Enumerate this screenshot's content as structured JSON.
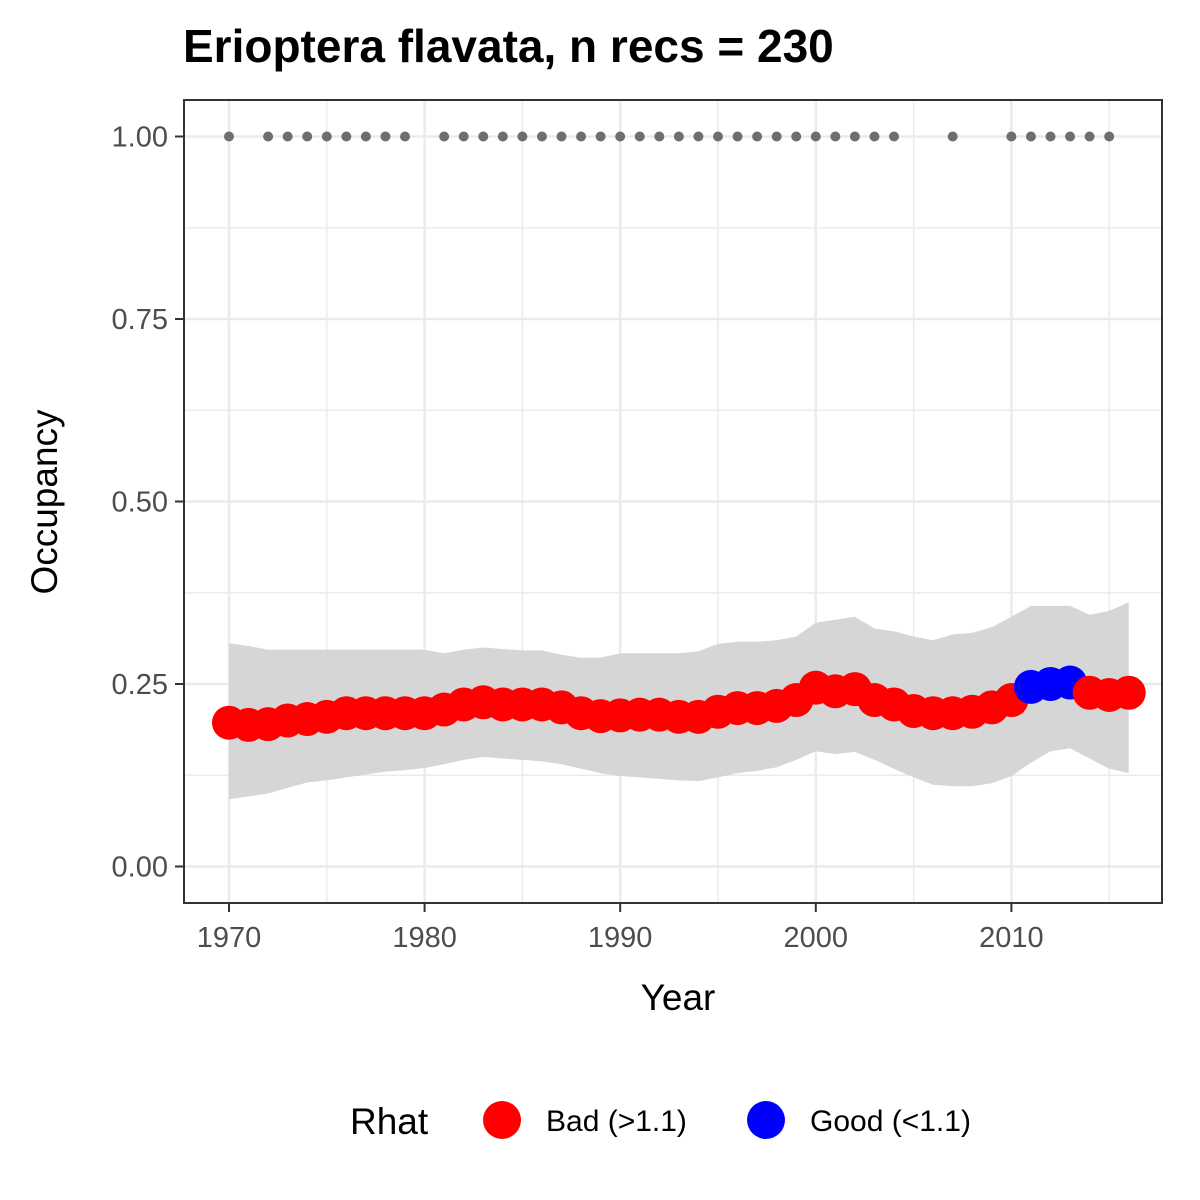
{
  "chart_data": {
    "type": "line",
    "title": "Erioptera flavata, n recs = 230",
    "xlabel": "Year",
    "ylabel": "Occupancy",
    "xlim": [
      1967.7,
      2017.7
    ],
    "ylim": [
      -0.05,
      1.05
    ],
    "x_ticks": [
      1970,
      1980,
      1990,
      2000,
      2010
    ],
    "x_tick_labels": [
      "1970",
      "1980",
      "1990",
      "2000",
      "2010"
    ],
    "y_ticks": [
      0,
      0.25,
      0.5,
      0.75,
      1
    ],
    "y_tick_labels": [
      "0.00",
      "0.25",
      "0.50",
      "0.75",
      "1.00"
    ],
    "grid": true,
    "series": [
      {
        "x": [
          1970,
          1971,
          1972,
          1973,
          1974,
          1975,
          1976,
          1977,
          1978,
          1979,
          1980,
          1981,
          1982,
          1983,
          1984,
          1985,
          1986,
          1987,
          1988,
          1989,
          1990,
          1991,
          1992,
          1993,
          1994,
          1995,
          1996,
          1997,
          1998,
          1999,
          2000,
          2001,
          2002,
          2003,
          2004,
          2005,
          2006,
          2007,
          2008,
          2009,
          2010,
          2011,
          2012,
          2013,
          2014,
          2015,
          2016
        ],
        "mean": [
          0.197,
          0.194,
          0.195,
          0.2,
          0.202,
          0.205,
          0.21,
          0.21,
          0.21,
          0.21,
          0.21,
          0.215,
          0.222,
          0.225,
          0.222,
          0.222,
          0.222,
          0.218,
          0.21,
          0.206,
          0.207,
          0.208,
          0.208,
          0.205,
          0.205,
          0.212,
          0.217,
          0.217,
          0.22,
          0.228,
          0.245,
          0.24,
          0.243,
          0.228,
          0.222,
          0.213,
          0.21,
          0.21,
          0.212,
          0.218,
          0.228,
          0.246,
          0.25,
          0.252,
          0.238,
          0.235,
          0.238
        ],
        "lower": [
          0.092,
          0.096,
          0.1,
          0.108,
          0.115,
          0.118,
          0.122,
          0.126,
          0.13,
          0.132,
          0.135,
          0.14,
          0.146,
          0.15,
          0.148,
          0.146,
          0.144,
          0.14,
          0.134,
          0.128,
          0.124,
          0.122,
          0.12,
          0.118,
          0.117,
          0.122,
          0.128,
          0.131,
          0.136,
          0.146,
          0.158,
          0.154,
          0.157,
          0.146,
          0.134,
          0.122,
          0.112,
          0.11,
          0.11,
          0.114,
          0.124,
          0.142,
          0.158,
          0.162,
          0.148,
          0.134,
          0.128
        ],
        "upper": [
          0.306,
          0.302,
          0.297,
          0.297,
          0.297,
          0.297,
          0.297,
          0.297,
          0.297,
          0.297,
          0.297,
          0.292,
          0.297,
          0.3,
          0.298,
          0.296,
          0.296,
          0.29,
          0.286,
          0.286,
          0.292,
          0.292,
          0.292,
          0.292,
          0.295,
          0.305,
          0.308,
          0.308,
          0.31,
          0.315,
          0.334,
          0.338,
          0.342,
          0.326,
          0.322,
          0.315,
          0.31,
          0.318,
          0.32,
          0.328,
          0.342,
          0.357,
          0.357,
          0.357,
          0.345,
          0.35,
          0.362
        ],
        "rhat_good": [
          false,
          false,
          false,
          false,
          false,
          false,
          false,
          false,
          false,
          false,
          false,
          false,
          false,
          false,
          false,
          false,
          false,
          false,
          false,
          false,
          false,
          false,
          false,
          false,
          false,
          false,
          false,
          false,
          false,
          false,
          false,
          false,
          false,
          false,
          false,
          false,
          false,
          false,
          false,
          false,
          false,
          true,
          true,
          true,
          false,
          false,
          false
        ]
      }
    ],
    "record_years": [
      1970,
      1972,
      1973,
      1974,
      1975,
      1976,
      1977,
      1978,
      1979,
      1981,
      1982,
      1983,
      1984,
      1985,
      1986,
      1987,
      1988,
      1989,
      1990,
      1991,
      1992,
      1993,
      1994,
      1995,
      1996,
      1997,
      1998,
      1999,
      2000,
      2001,
      2002,
      2003,
      2004,
      2007,
      2010,
      2011,
      2012,
      2013,
      2014,
      2015
    ],
    "record_value": 1.0,
    "legend": {
      "title": "Rhat",
      "position": "bottom",
      "items": [
        {
          "label": "Bad (>1.1)",
          "color": "#ff0000"
        },
        {
          "label": "Good (<1.1)",
          "color": "#0000ff"
        }
      ]
    },
    "colors": {
      "bad": "#ff0000",
      "good": "#0000ff",
      "ribbon": "#d6d6d6",
      "record_points": "#6e6e6e",
      "grid": "#ebebeb",
      "panel_border": "#333333"
    }
  }
}
